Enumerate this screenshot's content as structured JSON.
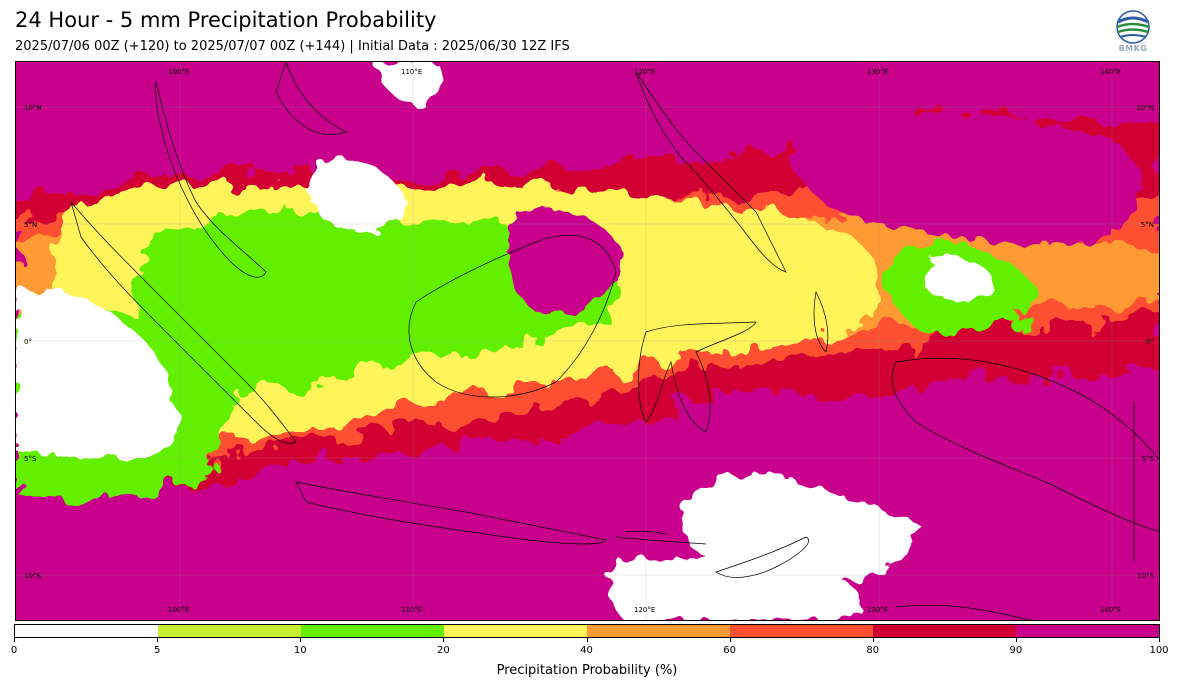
{
  "header": {
    "title": "24 Hour - 5 mm Precipitation Probability",
    "subtitle": "2025/07/06 00Z (+120) to 2025/07/07 00Z (+144) | Initial Data : 2025/06/30 12Z IFS"
  },
  "logo": {
    "text": "BMKG",
    "icon": "bmkg-globe-icon"
  },
  "map": {
    "lon_labels_top": [
      "100°E",
      "110°E",
      "120°E",
      "130°E",
      "140°E"
    ],
    "lon_labels_bottom": [
      "100°E",
      "110°E",
      "120°E",
      "130°E",
      "140°E"
    ],
    "lat_labels_left": [
      "10°N",
      "5°N",
      "0°",
      "5°S",
      "10°S"
    ],
    "lat_labels_right": [
      "10°N",
      "5°N",
      "0°",
      "5°S",
      "10°S"
    ]
  },
  "colorbar": {
    "title": "Precipitation Probability (%)",
    "tick_labels": [
      "0",
      "5",
      "10",
      "20",
      "40",
      "60",
      "80",
      "90",
      "100"
    ],
    "colors": [
      "#ffffff",
      "#c8f032",
      "#64f000",
      "#fff55a",
      "#ff9b32",
      "#ff5032",
      "#d20032",
      "#c8008c"
    ]
  },
  "colors": {
    "white": "#ffffff",
    "lime": "#c8f032",
    "green": "#64f000",
    "yellow": "#fff55a",
    "orange": "#ff9b32",
    "red_orange": "#ff5032",
    "crimson": "#d20032",
    "magenta": "#c8008c",
    "coast": "#000000"
  }
}
